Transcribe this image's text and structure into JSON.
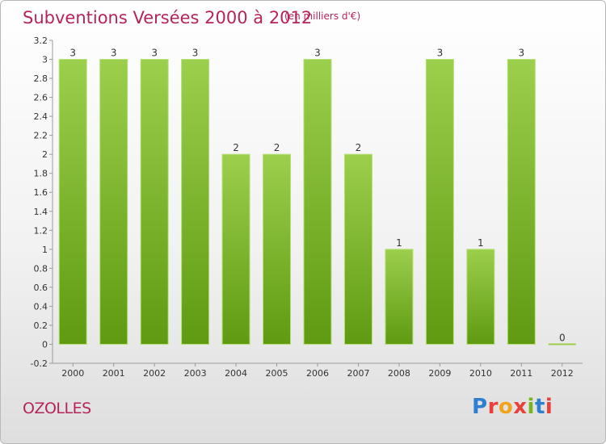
{
  "header": {
    "title": "Subventions Versées 2000 à 2012",
    "subtitle": "(en milliers d'€)"
  },
  "footer": {
    "commune": "OZOLLES",
    "logo_text": "Proxiti",
    "logo_colors": [
      "#2f7fd0",
      "#e8403a",
      "#f2a21b",
      "#e8403a",
      "#7ab51d",
      "#2f7fd0",
      "#e8403a"
    ]
  },
  "colors": {
    "accent": "#b5245a",
    "bar_light": "#9ccf4c",
    "bar_dark": "#5f9a12",
    "text": "#333333"
  },
  "chart_data": {
    "type": "bar",
    "title": "Subventions Versées 2000 à 2012",
    "categories": [
      "2000",
      "2001",
      "2002",
      "2003",
      "2004",
      "2005",
      "2006",
      "2007",
      "2008",
      "2009",
      "2010",
      "2011",
      "2012"
    ],
    "values": [
      3,
      3,
      3,
      3,
      2,
      2,
      3,
      2,
      1,
      3,
      1,
      3,
      0
    ],
    "data_labels": [
      "3",
      "3",
      "3",
      "3",
      "2",
      "2",
      "3",
      "2",
      "1",
      "3",
      "1",
      "3",
      "0"
    ],
    "ylim": [
      -0.2,
      3.2
    ],
    "yticks": [
      3.2,
      3,
      2.8,
      2.6,
      2.4,
      2.2,
      2,
      1.8,
      1.6,
      1.4,
      1.2,
      1,
      0.8,
      0.6,
      0.4,
      0.2,
      0,
      -0.2
    ],
    "ytick_labels": [
      "3.2",
      "3",
      "2.8",
      "2.6",
      "2.4",
      "2.2",
      "2",
      "1.8",
      "1.6",
      "1.4",
      "1.2",
      "1",
      "0.8",
      "0.6",
      "0.4",
      "0.2",
      "0",
      "-0.2"
    ],
    "grid": false,
    "legend": "none"
  }
}
